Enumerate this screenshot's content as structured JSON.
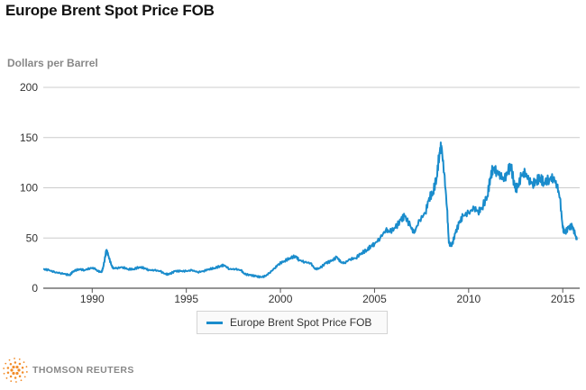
{
  "title": "Europe Brent Spot Price FOB",
  "footer": {
    "brand": "THOMSON REUTERS",
    "brand_color": "#f28c28"
  },
  "chart_data": {
    "type": "line",
    "title": "Europe Brent Spot Price FOB",
    "ylabel": "Dollars per Barrel",
    "xlabel": "",
    "xlim": [
      1987.4,
      2015.9
    ],
    "ylim": [
      0,
      200
    ],
    "yticks": [
      0,
      50,
      100,
      150,
      200
    ],
    "xticks": [
      1990,
      1995,
      2000,
      2005,
      2010,
      2015
    ],
    "grid": true,
    "legend_position": "bottom-center",
    "series": [
      {
        "name": "Europe Brent Spot Price FOB",
        "color": "#1a8ccc",
        "x": [
          1987.4,
          1987.7,
          1988.0,
          1988.3,
          1988.6,
          1988.8,
          1989.0,
          1989.3,
          1989.6,
          1989.9,
          1990.1,
          1990.3,
          1990.5,
          1990.6,
          1990.75,
          1990.85,
          1991.0,
          1991.1,
          1991.3,
          1991.6,
          1991.9,
          1992.2,
          1992.5,
          1992.8,
          1993.0,
          1993.3,
          1993.6,
          1993.9,
          1994.1,
          1994.4,
          1994.7,
          1995.0,
          1995.3,
          1995.6,
          1995.9,
          1996.2,
          1996.5,
          1996.8,
          1997.0,
          1997.3,
          1997.6,
          1997.9,
          1998.1,
          1998.4,
          1998.7,
          1998.95,
          1999.2,
          1999.4,
          1999.7,
          1999.9,
          2000.2,
          2000.5,
          2000.8,
          2001.0,
          2001.3,
          2001.6,
          2001.85,
          2002.1,
          2002.4,
          2002.7,
          2003.0,
          2003.2,
          2003.4,
          2003.7,
          2004.0,
          2004.3,
          2004.6,
          2004.8,
          2005.0,
          2005.3,
          2005.6,
          2005.8,
          2006.1,
          2006.4,
          2006.6,
          2006.9,
          2007.1,
          2007.4,
          2007.7,
          2007.9,
          2008.1,
          2008.3,
          2008.45,
          2008.55,
          2008.7,
          2008.85,
          2008.95,
          2009.1,
          2009.3,
          2009.5,
          2009.7,
          2010.0,
          2010.3,
          2010.5,
          2010.7,
          2011.0,
          2011.15,
          2011.3,
          2011.5,
          2011.7,
          2011.9,
          2012.1,
          2012.25,
          2012.45,
          2012.6,
          2012.8,
          2013.0,
          2013.2,
          2013.4,
          2013.6,
          2013.8,
          2014.0,
          2014.3,
          2014.5,
          2014.7,
          2014.85,
          2015.0,
          2015.1,
          2015.3,
          2015.5,
          2015.65,
          2015.75
        ],
        "values": [
          19,
          18,
          16,
          15,
          14,
          13,
          17,
          19,
          18,
          20,
          20,
          17,
          16,
          22,
          38,
          33,
          24,
          20,
          20,
          21,
          19,
          19,
          21,
          20,
          18,
          18,
          17,
          14,
          14,
          17,
          17,
          17,
          18,
          16,
          17,
          19,
          20,
          22,
          23,
          19,
          19,
          18,
          14,
          13,
          12,
          11,
          12,
          15,
          20,
          24,
          27,
          30,
          32,
          28,
          26,
          25,
          19,
          20,
          25,
          27,
          31,
          26,
          25,
          29,
          30,
          35,
          38,
          42,
          44,
          50,
          58,
          56,
          60,
          68,
          72,
          62,
          55,
          68,
          75,
          90,
          95,
          110,
          135,
          142,
          115,
          80,
          45,
          42,
          55,
          65,
          72,
          75,
          80,
          76,
          80,
          92,
          110,
          120,
          116,
          112,
          108,
          117,
          122,
          100,
          100,
          112,
          115,
          108,
          104,
          107,
          110,
          105,
          109,
          110,
          102,
          90,
          60,
          55,
          60,
          62,
          54,
          48
        ],
        "values_note": "approximate monthly readings from chart"
      }
    ]
  }
}
